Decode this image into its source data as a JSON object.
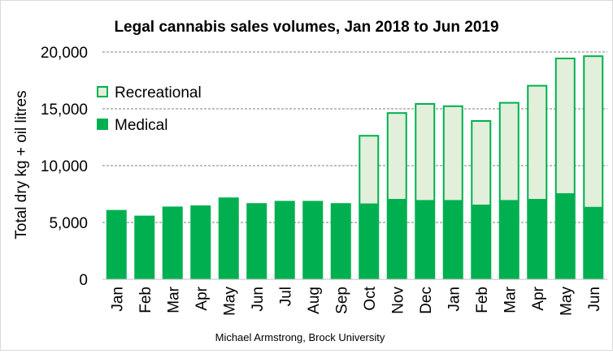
{
  "chart_data": {
    "type": "bar",
    "stacked": true,
    "title": "Legal cannabis sales volumes, Jan 2018 to Jun 2019",
    "ylabel": "Total dry kg + oil litres",
    "xlabel": "",
    "ylim": [
      0,
      20000
    ],
    "yticks": [
      0,
      5000,
      10000,
      15000,
      20000
    ],
    "ytick_labels": [
      "0",
      "5,000",
      "10,000",
      "15,000",
      "20,000"
    ],
    "grid": "horizontal dashed",
    "legend_position": "top-left",
    "categories": [
      "Jan",
      "Feb",
      "Mar",
      "Apr",
      "May",
      "Jun",
      "Jul",
      "Aug",
      "Sep",
      "Oct",
      "Nov",
      "Dec",
      "Jan",
      "Feb",
      "Mar",
      "Apr",
      "May",
      "Jun"
    ],
    "series": [
      {
        "name": "Medical",
        "color": "#00b050",
        "values": [
          6100,
          5600,
          6400,
          6500,
          7200,
          6700,
          6900,
          6900,
          6700,
          6600,
          7000,
          6900,
          6900,
          6500,
          6900,
          7000,
          7500,
          6300
        ]
      },
      {
        "name": "Recreational",
        "color": "#e2efda",
        "edge_color": "#00b050",
        "values": [
          0,
          0,
          0,
          0,
          0,
          0,
          0,
          0,
          0,
          6100,
          7700,
          8600,
          8400,
          7500,
          8700,
          10100,
          12000,
          13400
        ]
      }
    ],
    "credit": "Michael Armstrong, Brock University"
  }
}
